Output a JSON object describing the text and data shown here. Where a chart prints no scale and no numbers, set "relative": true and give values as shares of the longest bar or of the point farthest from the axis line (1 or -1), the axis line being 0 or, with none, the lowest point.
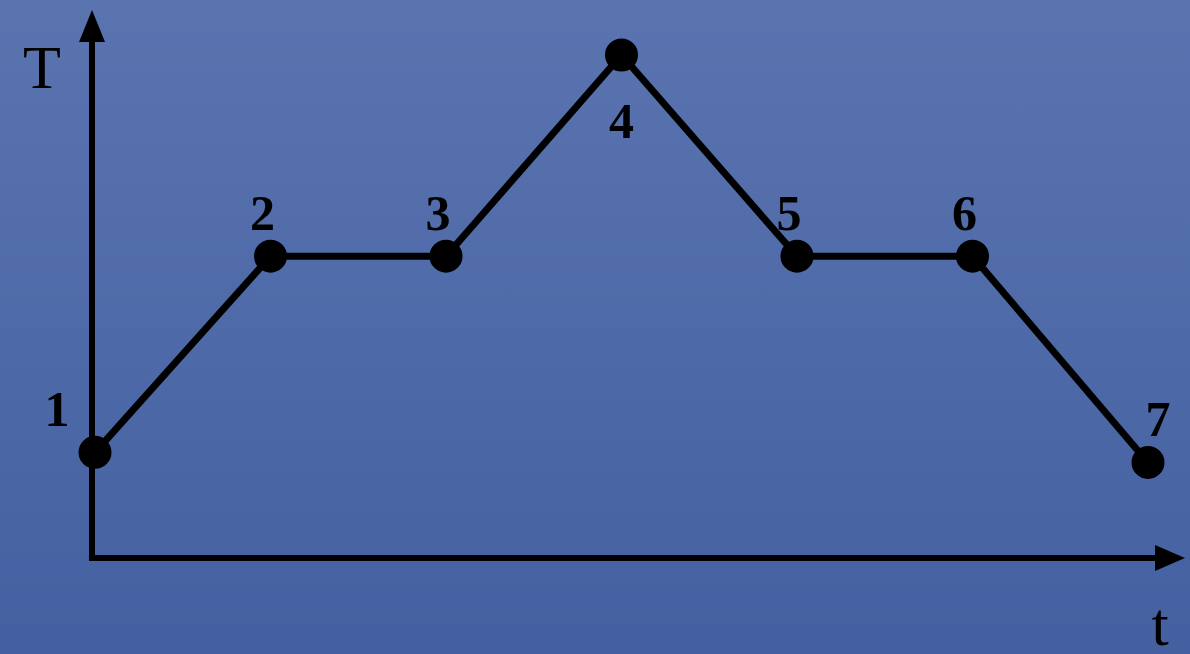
{
  "chart_data": {
    "type": "line",
    "relative": true,
    "xlabel": "t",
    "ylabel": "T",
    "categories": [
      null,
      null,
      null,
      null,
      null,
      null,
      null
    ],
    "legend": false,
    "marker": "circle",
    "line_style": "solid",
    "series": [
      {
        "color": "#000000",
        "values": [
          0.21,
          0.6,
          0.6,
          1,
          0.6,
          0.6,
          0.19
        ]
      }
    ],
    "annotations": [
      "1",
      "2",
      "3",
      "4",
      "5",
      "6",
      "7"
    ]
  }
}
